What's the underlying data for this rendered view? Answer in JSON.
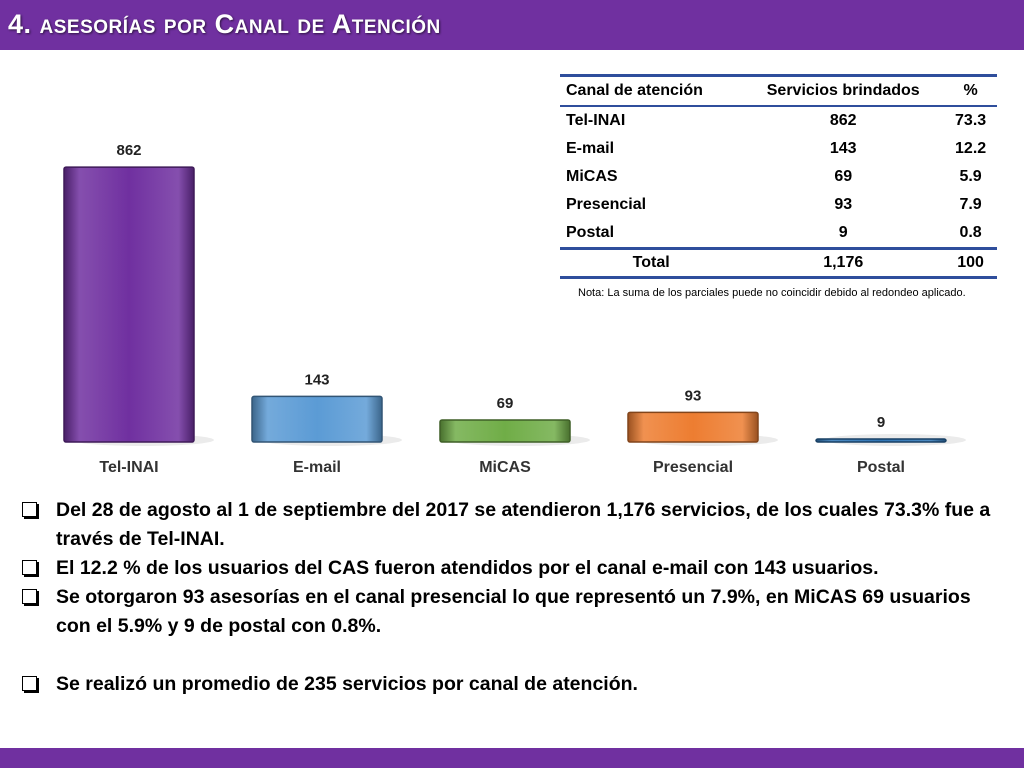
{
  "header": {
    "title": "4. asesorías por Canal de Atención"
  },
  "colors": {
    "brand": "#7030a0",
    "tel_inai": "#7030a0",
    "email": "#5b9bd5",
    "micas": "#70ad47",
    "presencial": "#ed7d31",
    "postal": "#2e75b6",
    "table_rule": "#2f4e9c"
  },
  "chart_data": {
    "type": "bar",
    "categories": [
      "Tel-INAI",
      "E-mail",
      "MiCAS",
      "Presencial",
      "Postal"
    ],
    "values": [
      862,
      143,
      69,
      93,
      9
    ],
    "value_labels": [
      "862",
      "143",
      "69",
      "93",
      "9"
    ],
    "colors": [
      "#7030a0",
      "#5b9bd5",
      "#70ad47",
      "#ed7d31",
      "#2e75b6"
    ],
    "ylim": [
      0,
      900
    ],
    "grid": false,
    "legend": "none"
  },
  "table": {
    "headers": [
      "Canal de atención",
      "Servicios brindados",
      "%"
    ],
    "rows": [
      [
        "Tel-INAI",
        "862",
        "73.3"
      ],
      [
        "E-mail",
        "143",
        "12.2"
      ],
      [
        "MiCAS",
        "69",
        "5.9"
      ],
      [
        "Presencial",
        "93",
        "7.9"
      ],
      [
        "Postal",
        "9",
        "0.8"
      ]
    ],
    "total": [
      "Total",
      "1,176",
      "100"
    ],
    "note": "Nota: La suma de los parciales puede no coincidir debido al redondeo aplicado."
  },
  "bullets": [
    "Del 28 de agosto al 1 de septiembre del 2017 se atendieron 1,176 servicios, de los cuales 73.3% fue a través de Tel-INAI.",
    "El 12.2 % de los usuarios del CAS fueron atendidos por el canal e-mail con 143 usuarios.",
    "Se otorgaron 93 asesorías en el canal presencial lo que representó un 7.9%, en MiCAS 69 usuarios con el 5.9% y 9 de postal con 0.8%.",
    "Se realizó un promedio de 235 servicios por canal de atención."
  ]
}
